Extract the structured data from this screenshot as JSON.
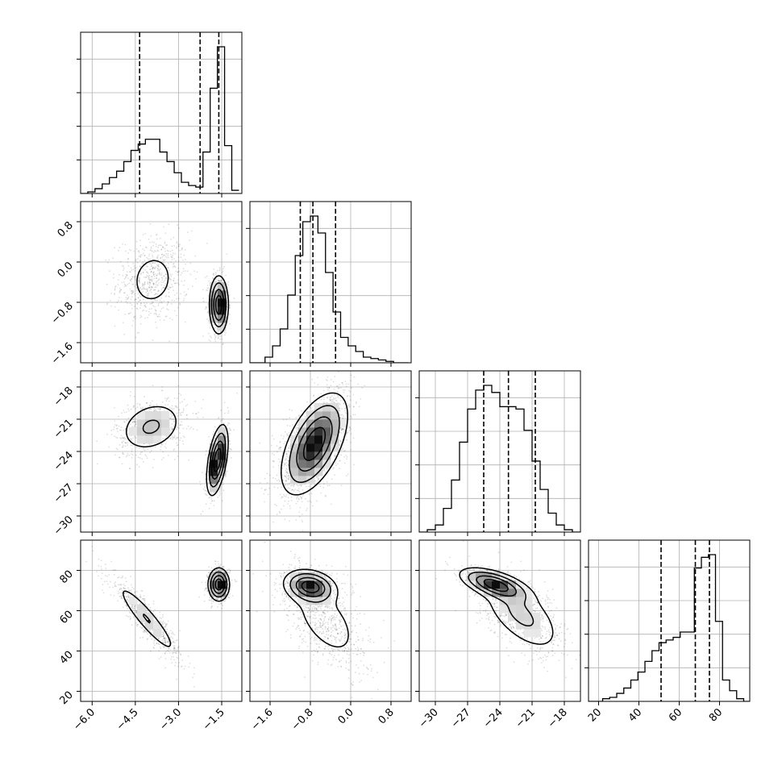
{
  "chart_data": {
    "type": "corner",
    "description_panels": "lower-triangle pairwise density (2D histogram + contours + scatter), diagonal 1D histograms with dashed quantile lines",
    "grid": true,
    "params": [
      {
        "id": "p0",
        "range": [
          -6.4,
          -0.8
        ],
        "ticks": [
          -6.0,
          -4.5,
          -3.0,
          -1.5
        ],
        "tick_labels": [
          "−6.0",
          "−4.5",
          "−3.0",
          "−1.5"
        ],
        "quantiles": [
          -4.35,
          -2.25,
          -1.6
        ]
      },
      {
        "id": "p1",
        "range": [
          -2.0,
          1.2
        ],
        "ticks": [
          -1.6,
          -0.8,
          0.0,
          0.8
        ],
        "tick_labels": [
          "−1.6",
          "−0.8",
          "0.0",
          "0.8"
        ],
        "quantiles": [
          -1.0,
          -0.75,
          -0.3
        ]
      },
      {
        "id": "p2",
        "range": [
          -31.5,
          -16.5
        ],
        "ticks": [
          -30,
          -27,
          -24,
          -21,
          -18
        ],
        "tick_labels": [
          "−30",
          "−27",
          "−24",
          "−21",
          "−18"
        ],
        "quantiles": [
          -25.5,
          -23.2,
          -20.7
        ]
      },
      {
        "id": "p3",
        "range": [
          15,
          95
        ],
        "ticks": [
          20,
          40,
          60,
          80
        ],
        "tick_labels": [
          "20",
          "40",
          "60",
          "80"
        ],
        "quantiles": [
          51,
          68,
          75
        ]
      }
    ],
    "histograms": [
      {
        "param": "p0",
        "bin_edges": [
          -6.4,
          -6.15,
          -5.9,
          -5.65,
          -5.4,
          -5.15,
          -4.9,
          -4.65,
          -4.4,
          -4.15,
          -3.9,
          -3.65,
          -3.4,
          -3.15,
          -2.9,
          -2.65,
          -2.4,
          -2.15,
          -1.9,
          -1.65,
          -1.4,
          -1.15,
          -0.9
        ],
        "counts": [
          0,
          0.01,
          0.03,
          0.06,
          0.1,
          0.14,
          0.2,
          0.27,
          0.31,
          0.34,
          0.34,
          0.26,
          0.2,
          0.13,
          0.07,
          0.05,
          0.04,
          0.26,
          0.66,
          0.92,
          0.3,
          0.02
        ]
      },
      {
        "param": "p1",
        "bin_edges": [
          -2.0,
          -1.85,
          -1.7,
          -1.55,
          -1.4,
          -1.25,
          -1.1,
          -0.95,
          -0.8,
          -0.65,
          -0.5,
          -0.35,
          -0.2,
          -0.05,
          0.1,
          0.25,
          0.4,
          0.55,
          0.7,
          0.85,
          1.0,
          1.15
        ],
        "counts": [
          0,
          0,
          0.02,
          0.06,
          0.12,
          0.24,
          0.38,
          0.5,
          0.52,
          0.46,
          0.32,
          0.18,
          0.09,
          0.06,
          0.04,
          0.02,
          0.015,
          0.01,
          0.005,
          0,
          0
        ]
      },
      {
        "param": "p2",
        "bin_edges": [
          -31.5,
          -30.75,
          -30.0,
          -29.25,
          -28.5,
          -27.75,
          -27.0,
          -26.25,
          -25.5,
          -24.75,
          -24.0,
          -23.25,
          -22.5,
          -21.75,
          -21.0,
          -20.25,
          -19.5,
          -18.75,
          -18.0,
          -17.25,
          -16.5
        ],
        "counts": [
          0,
          0.01,
          0.03,
          0.1,
          0.22,
          0.38,
          0.52,
          0.6,
          0.62,
          0.59,
          0.53,
          0.53,
          0.52,
          0.43,
          0.3,
          0.18,
          0.08,
          0.03,
          0.01,
          0
        ]
      },
      {
        "param": "p3",
        "bin_edges": [
          15,
          18.5,
          22,
          25.5,
          29,
          32.5,
          36,
          39.5,
          43,
          46.5,
          50,
          53.5,
          57,
          60.5,
          64,
          67.5,
          71,
          74.5,
          78,
          81.5,
          85,
          88.5,
          92,
          95
        ],
        "counts": [
          0,
          0,
          0.01,
          0.015,
          0.03,
          0.05,
          0.08,
          0.11,
          0.15,
          0.19,
          0.22,
          0.23,
          0.24,
          0.26,
          0.26,
          0.5,
          0.54,
          0.55,
          0.3,
          0.08,
          0.04,
          0.01,
          0
        ]
      }
    ],
    "pairs": [
      {
        "x": "p0",
        "y": "p1",
        "modes": [
          {
            "cx": -3.9,
            "cy": -0.35,
            "sx": 0.6,
            "sy": 0.42,
            "rho": 0.1,
            "w": 0.5
          },
          {
            "cx": -1.6,
            "cy": -0.85,
            "sx": 0.16,
            "sy": 0.28,
            "rho": 0.0,
            "w": 0.5
          }
        ]
      },
      {
        "x": "p0",
        "y": "p2",
        "modes": [
          {
            "cx": -3.95,
            "cy": -21.7,
            "sx": 0.6,
            "sy": 1.3,
            "rho": 0.25,
            "w": 0.5
          },
          {
            "cx": -1.65,
            "cy": -24.8,
            "sx": 0.18,
            "sy": 1.6,
            "rho": 0.5,
            "w": 0.5
          }
        ]
      },
      {
        "x": "p0",
        "y": "p3",
        "modes": [
          {
            "cx": -4.1,
            "cy": 56,
            "sx": 0.6,
            "sy": 10,
            "rho": -0.92,
            "w": 0.5
          },
          {
            "cx": -1.6,
            "cy": 73,
            "sx": 0.18,
            "sy": 4,
            "rho": 0.0,
            "w": 0.5
          }
        ]
      },
      {
        "x": "p1",
        "y": "p2",
        "modes": [
          {
            "cx": -0.72,
            "cy": -23.3,
            "sx": 0.32,
            "sy": 2.3,
            "rho": 0.55,
            "w": 1.0
          }
        ]
      },
      {
        "x": "p1",
        "y": "p3",
        "modes": [
          {
            "cx": -0.8,
            "cy": 72,
            "sx": 0.25,
            "sy": 4,
            "rho": -0.2,
            "w": 0.5
          },
          {
            "cx": -0.5,
            "cy": 55,
            "sx": 0.42,
            "sy": 12,
            "rho": -0.55,
            "w": 0.5
          }
        ]
      },
      {
        "x": "p2",
        "y": "p3",
        "modes": [
          {
            "cx": -24.5,
            "cy": 73,
            "sx": 1.6,
            "sy": 4,
            "rho": -0.6,
            "w": 0.45
          },
          {
            "cx": -22.0,
            "cy": 58,
            "sx": 2.0,
            "sy": 10,
            "rho": -0.6,
            "w": 0.55
          }
        ]
      }
    ]
  }
}
